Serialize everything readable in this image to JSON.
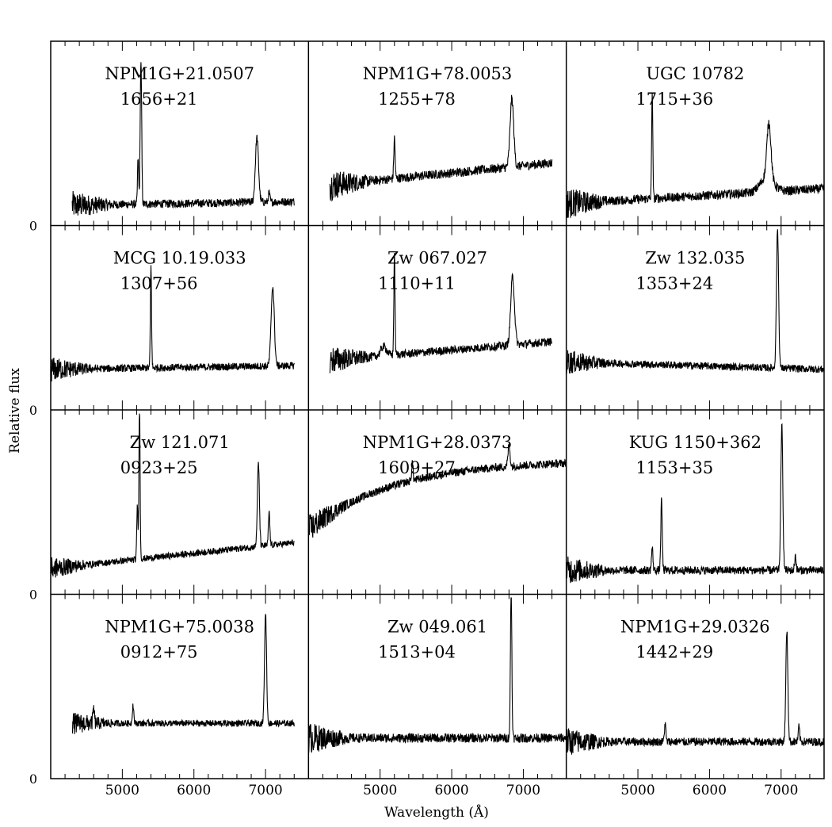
{
  "chart_data": {
    "type": "line",
    "grid": false,
    "layout": "4x3 panel grid of spectra",
    "xlabel": "Wavelength (Å)",
    "ylabel": "Relative flux",
    "xlim": [
      4000,
      7600
    ],
    "x_ticks": [
      5000,
      6000,
      7000
    ],
    "y_tick_label": "0",
    "panels": [
      {
        "name": "NPM1G+21.0507",
        "code": "1656+21",
        "range": [
          4300,
          7400
        ],
        "base": 0.11,
        "slope": 0.02,
        "noise": 0.045,
        "lines": [
          {
            "x": 5260,
            "h": 0.78,
            "w": 10
          },
          {
            "x": 5220,
            "h": 0.25,
            "w": 8
          },
          {
            "x": 6880,
            "h": 0.35,
            "w": 22
          },
          {
            "x": 7050,
            "h": 0.05,
            "w": 10
          }
        ]
      },
      {
        "name": "NPM1G+78.0053",
        "code": "1255+78",
        "range": [
          4300,
          7400
        ],
        "base": 0.22,
        "slope": 0.12,
        "noise": 0.05,
        "lines": [
          {
            "x": 5200,
            "h": 0.22,
            "w": 9
          },
          {
            "x": 6840,
            "h": 0.37,
            "w": 25
          }
        ]
      },
      {
        "name": "UGC 10782",
        "code": "1715+36",
        "range": [
          4000,
          7600
        ],
        "base": 0.12,
        "slope": 0.08,
        "noise": 0.05,
        "lines": [
          {
            "x": 5200,
            "h": 0.58,
            "w": 8
          },
          {
            "x": 6830,
            "h": 0.3,
            "w": 28
          },
          {
            "x": 6800,
            "h": 0.08,
            "w": 90
          }
        ]
      },
      {
        "name": "MCG 10.19.033",
        "code": "1307+56",
        "range": [
          4000,
          7400
        ],
        "base": 0.22,
        "slope": 0.02,
        "noise": 0.04,
        "lines": [
          {
            "x": 5400,
            "h": 0.55,
            "w": 8
          },
          {
            "x": 7100,
            "h": 0.43,
            "w": 22
          }
        ]
      },
      {
        "name": "Zw 067.027",
        "code": "1110+11",
        "range": [
          4300,
          7400
        ],
        "base": 0.27,
        "slope": 0.1,
        "noise": 0.045,
        "lines": [
          {
            "x": 5200,
            "h": 0.55,
            "w": 8
          },
          {
            "x": 6850,
            "h": 0.37,
            "w": 26
          },
          {
            "x": 5050,
            "h": 0.05,
            "w": 40
          }
        ]
      },
      {
        "name": "Zw 132.035",
        "code": "1353+24",
        "range": [
          4000,
          7600
        ],
        "base": 0.26,
        "slope": -0.04,
        "noise": 0.04,
        "lines": [
          {
            "x": 6950,
            "h": 0.75,
            "w": 15
          }
        ]
      },
      {
        "name": "Zw 121.071",
        "code": "0923+25",
        "range": [
          4000,
          7400
        ],
        "base": 0.14,
        "slope": 0.14,
        "noise": 0.035,
        "lines": [
          {
            "x": 5240,
            "h": 0.86,
            "w": 8
          },
          {
            "x": 5210,
            "h": 0.3,
            "w": 8
          },
          {
            "x": 6900,
            "h": 0.45,
            "w": 14
          },
          {
            "x": 7050,
            "h": 0.18,
            "w": 10
          }
        ]
      },
      {
        "name": "NPM1G+28.0373",
        "code": "1609+27",
        "range": [
          4000,
          7600
        ],
        "base": 0.35,
        "slope": 0.38,
        "noise": 0.045,
        "lines": [
          {
            "x": 5450,
            "h": 0.1,
            "w": 10
          },
          {
            "x": 6800,
            "h": 0.12,
            "w": 14
          }
        ]
      },
      {
        "name": "KUG 1150+362",
        "code": "1153+35",
        "range": [
          4000,
          7600
        ],
        "base": 0.13,
        "slope": 0.0,
        "noise": 0.045,
        "lines": [
          {
            "x": 5330,
            "h": 0.38,
            "w": 10
          },
          {
            "x": 5200,
            "h": 0.12,
            "w": 10
          },
          {
            "x": 7010,
            "h": 0.78,
            "w": 14
          },
          {
            "x": 7200,
            "h": 0.08,
            "w": 10
          }
        ]
      },
      {
        "name": "NPM1G+75.0038",
        "code": "0912+75",
        "range": [
          4300,
          7400
        ],
        "base": 0.3,
        "slope": 0.0,
        "noise": 0.035,
        "lines": [
          {
            "x": 7000,
            "h": 0.6,
            "w": 14
          },
          {
            "x": 5150,
            "h": 0.1,
            "w": 10
          },
          {
            "x": 4600,
            "h": 0.08,
            "w": 10
          }
        ]
      },
      {
        "name": "Zw 049.061",
        "code": "1513+04",
        "range": [
          4000,
          7600
        ],
        "base": 0.22,
        "slope": 0.0,
        "noise": 0.05,
        "lines": [
          {
            "x": 6830,
            "h": 0.8,
            "w": 10
          }
        ]
      },
      {
        "name": "NPM1G+29.0326",
        "code": "1442+29",
        "range": [
          4000,
          7600
        ],
        "base": 0.2,
        "slope": 0.0,
        "noise": 0.045,
        "lines": [
          {
            "x": 7080,
            "h": 0.6,
            "w": 14
          },
          {
            "x": 7250,
            "h": 0.08,
            "w": 10
          },
          {
            "x": 5380,
            "h": 0.1,
            "w": 10
          }
        ]
      }
    ]
  }
}
